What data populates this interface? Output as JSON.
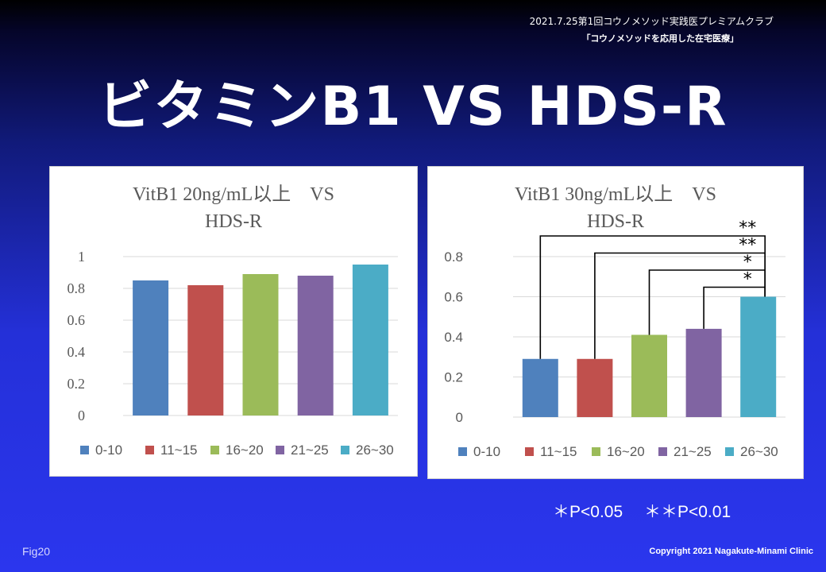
{
  "header": {
    "line1": "2021.7.25第1回コウノメソッド実践医プレミアムクラブ",
    "line2": "「コウノメソッドを応用した在宅医療」"
  },
  "slide_title": "ビタミンB1 VS HDS-R",
  "colors": {
    "series": [
      "#4f81bd",
      "#c0504d",
      "#9bbb59",
      "#8064a2",
      "#4bacc6"
    ],
    "grid": "#d9d9d9",
    "text": "#595959",
    "background_top": "#000000",
    "background_bottom": "#2b36ee"
  },
  "chart_data": [
    {
      "type": "bar",
      "title": "VitB1 20ng/mL以上　VS HDS-R",
      "title_lines": [
        "VitB1 20ng/mL以上　VS",
        "HDS-R"
      ],
      "categories": [
        "0-10",
        "11~15",
        "16~20",
        "21~25",
        "26~30"
      ],
      "values": [
        0.85,
        0.82,
        0.89,
        0.88,
        0.95
      ],
      "ylim": [
        0,
        1
      ],
      "yticks": [
        0,
        0.2,
        0.4,
        0.6,
        0.8,
        1
      ],
      "ytick_labels": [
        "0",
        "0.2",
        "0.4",
        "0.6",
        "0.8",
        "1"
      ],
      "legend": [
        "0-10",
        "11~15",
        "16~20",
        "21~25",
        "26~30"
      ],
      "legend_position": "bottom",
      "grid": true
    },
    {
      "type": "bar",
      "title": "VitB1 30ng/mL以上　VS HDS-R",
      "title_lines": [
        "VitB1 30ng/mL以上　VS",
        "HDS-R"
      ],
      "categories": [
        "0-10",
        "11~15",
        "16~20",
        "21~25",
        "26~30"
      ],
      "values": [
        0.29,
        0.29,
        0.41,
        0.44,
        0.6
      ],
      "ylim": [
        0,
        0.8
      ],
      "yticks": [
        0,
        0.2,
        0.4,
        0.6,
        0.8
      ],
      "ytick_labels": [
        "0",
        "0.2",
        "0.4",
        "0.6",
        "0.8"
      ],
      "legend": [
        "0-10",
        "11~15",
        "16~20",
        "21~25",
        "26~30"
      ],
      "legend_position": "bottom",
      "grid": true,
      "significance": [
        {
          "from": "0-10",
          "to": "26~30",
          "label": "**"
        },
        {
          "from": "11~15",
          "to": "26~30",
          "label": "**"
        },
        {
          "from": "16~20",
          "to": "26~30",
          "label": "*"
        },
        {
          "from": "21~25",
          "to": "26~30",
          "label": "*"
        }
      ]
    }
  ],
  "footnote": "＊P<0.05　 ＊＊P<0.01",
  "fig_label": "Fig20",
  "copyright": "Copyright 2021 Nagakute-Minami Clinic"
}
